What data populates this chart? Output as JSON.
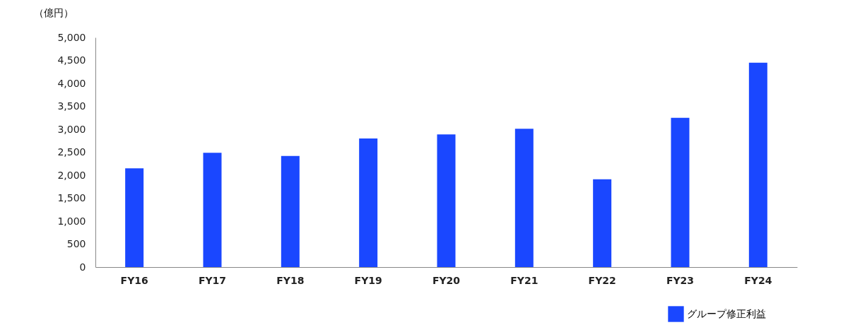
{
  "chart_data": {
    "type": "bar",
    "ylabel": "（億円）",
    "categories": [
      "FY16",
      "FY17",
      "FY18",
      "FY19",
      "FY20",
      "FY21",
      "FY22",
      "FY23",
      "FY24"
    ],
    "series": [
      {
        "name": "グループ修正利益",
        "color": "#1a47ff",
        "values": [
          2150,
          2490,
          2420,
          2800,
          2890,
          3010,
          1910,
          3250,
          4450
        ]
      }
    ],
    "ylim": [
      0,
      5000
    ],
    "yticks": [
      0,
      {
        "value": 500,
        "label": "500"
      },
      {
        "value": 1000,
        "label": "1,000"
      },
      {
        "value": 1500,
        "label": "1,500"
      },
      {
        "value": 2000,
        "label": "2,000"
      },
      {
        "value": 2500,
        "label": "2,500"
      },
      {
        "value": 3000,
        "label": "3,000"
      },
      {
        "value": 3500,
        "label": "3,500"
      },
      {
        "value": 4000,
        "label": "4,000"
      },
      {
        "value": 4500,
        "label": "4,500"
      },
      {
        "value": 5000,
        "label": "5,000"
      }
    ],
    "grid": false,
    "legend": "bottom right"
  }
}
